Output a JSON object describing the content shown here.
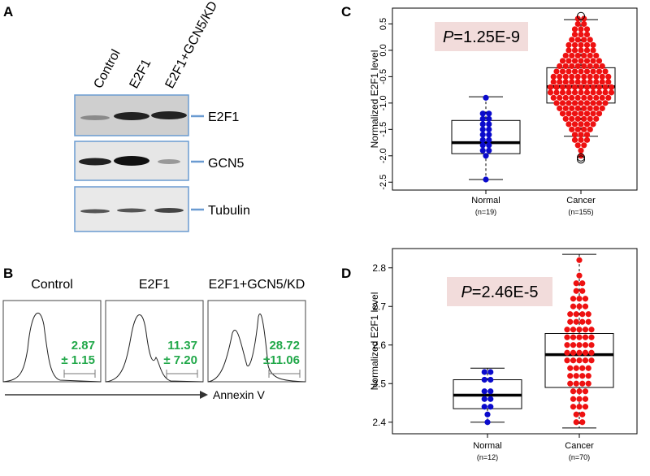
{
  "panel_a": {
    "label": "A",
    "lanes": [
      "Control",
      "E2F1",
      "E2F1+GCN5/KD"
    ],
    "bands": [
      "E2F1",
      "GCN5",
      "Tubulin"
    ]
  },
  "panel_b": {
    "label": "B",
    "samples": [
      {
        "name": "Control",
        "value": "2.87",
        "error": "± 1.15"
      },
      {
        "name": "E2F1",
        "value": "11.37",
        "error": "± 7.20"
      },
      {
        "name": "E2F1+GCN5/KD",
        "value": "28.72",
        "error": "±11.06"
      }
    ],
    "x_label": "Annexin V"
  },
  "chart_data": [
    {
      "type": "box",
      "panel": "C",
      "y_label": "Normalized E2F1 level",
      "annotation": {
        "variable": "P",
        "text": "=1.25E-9"
      },
      "categories": [
        "Normal",
        "Cancer"
      ],
      "category_notes": [
        "(n=19)",
        "(n=155)"
      ],
      "colors": [
        "#0a0acc",
        "#ee1111"
      ],
      "boxes": [
        {
          "whislo": -2.45,
          "q1": -1.96,
          "median": -1.75,
          "q3": -1.33,
          "whishi": -0.88
        },
        {
          "whislo": -1.63,
          "q1": -1.0,
          "median": -0.69,
          "q3": -0.33,
          "whishi": 0.58
        }
      ],
      "outliers": [
        [],
        [
          0.65,
          -2.03,
          -2.07
        ]
      ],
      "dot_rows": [
        [
          {
            "value": -0.9,
            "count": 1
          },
          {
            "value": -1.2,
            "count": 2
          },
          {
            "value": -1.3,
            "count": 2
          },
          {
            "value": -1.4,
            "count": 2
          },
          {
            "value": -1.5,
            "count": 2
          },
          {
            "value": -1.6,
            "count": 2
          },
          {
            "value": -1.7,
            "count": 2
          },
          {
            "value": -1.8,
            "count": 2
          },
          {
            "value": -1.9,
            "count": 2
          },
          {
            "value": -2.0,
            "count": 1
          },
          {
            "value": -2.45,
            "count": 1
          }
        ],
        [
          {
            "value": 0.6,
            "count": 2
          },
          {
            "value": 0.5,
            "count": 2
          },
          {
            "value": 0.4,
            "count": 3
          },
          {
            "value": 0.3,
            "count": 3
          },
          {
            "value": 0.2,
            "count": 4
          },
          {
            "value": 0.1,
            "count": 5
          },
          {
            "value": 0.0,
            "count": 5
          },
          {
            "value": -0.1,
            "count": 6
          },
          {
            "value": -0.2,
            "count": 7
          },
          {
            "value": -0.3,
            "count": 8
          },
          {
            "value": -0.4,
            "count": 9
          },
          {
            "value": -0.5,
            "count": 10
          },
          {
            "value": -0.6,
            "count": 10
          },
          {
            "value": -0.7,
            "count": 11
          },
          {
            "value": -0.8,
            "count": 11
          },
          {
            "value": -0.9,
            "count": 10
          },
          {
            "value": -1.0,
            "count": 9
          },
          {
            "value": -1.1,
            "count": 8
          },
          {
            "value": -1.2,
            "count": 7
          },
          {
            "value": -1.3,
            "count": 6
          },
          {
            "value": -1.4,
            "count": 5
          },
          {
            "value": -1.5,
            "count": 4
          },
          {
            "value": -1.6,
            "count": 3
          },
          {
            "value": -1.7,
            "count": 3
          },
          {
            "value": -1.8,
            "count": 2
          },
          {
            "value": -1.9,
            "count": 1
          },
          {
            "value": -2.0,
            "count": 1
          }
        ]
      ],
      "ylim": [
        -2.65,
        0.8
      ],
      "yticks": [
        {
          "value": -2.5,
          "label": "-2.5"
        },
        {
          "value": -2,
          "label": "-2.0"
        },
        {
          "value": -1.5,
          "label": "-1.5"
        },
        {
          "value": -1,
          "label": "-1.0"
        },
        {
          "value": -0.5,
          "label": "-0.5"
        },
        {
          "value": 0,
          "label": "0.0"
        },
        {
          "value": 0.5,
          "label": "0.5"
        }
      ]
    },
    {
      "type": "box",
      "panel": "D",
      "y_label": "Normalized E2F1 level",
      "annotation": {
        "variable": "P",
        "text": "=2.46E-5"
      },
      "categories": [
        "Normal",
        "Cancer"
      ],
      "category_notes": [
        "(n=12)",
        "(n=70)"
      ],
      "colors": [
        "#0a0acc",
        "#ee1111"
      ],
      "boxes": [
        {
          "whislo": 2.4,
          "q1": 2.435,
          "median": 2.47,
          "q3": 2.51,
          "whishi": 2.54
        },
        {
          "whislo": 2.385,
          "q1": 2.49,
          "median": 2.575,
          "q3": 2.63,
          "whishi": 2.835
        }
      ],
      "outliers": [
        [],
        []
      ],
      "dot_rows": [
        [
          {
            "value": 2.53,
            "count": 2
          },
          {
            "value": 2.51,
            "count": 2
          },
          {
            "value": 2.48,
            "count": 2
          },
          {
            "value": 2.46,
            "count": 2
          },
          {
            "value": 2.44,
            "count": 2
          },
          {
            "value": 2.42,
            "count": 1
          },
          {
            "value": 2.4,
            "count": 1
          }
        ],
        [
          {
            "value": 2.82,
            "count": 1
          },
          {
            "value": 2.78,
            "count": 1
          },
          {
            "value": 2.76,
            "count": 2
          },
          {
            "value": 2.74,
            "count": 2
          },
          {
            "value": 2.72,
            "count": 3
          },
          {
            "value": 2.7,
            "count": 3
          },
          {
            "value": 2.68,
            "count": 4
          },
          {
            "value": 2.66,
            "count": 4
          },
          {
            "value": 2.64,
            "count": 5
          },
          {
            "value": 2.62,
            "count": 5
          },
          {
            "value": 2.6,
            "count": 5
          },
          {
            "value": 2.58,
            "count": 5
          },
          {
            "value": 2.56,
            "count": 5
          },
          {
            "value": 2.54,
            "count": 4
          },
          {
            "value": 2.52,
            "count": 4
          },
          {
            "value": 2.5,
            "count": 4
          },
          {
            "value": 2.48,
            "count": 3
          },
          {
            "value": 2.46,
            "count": 3
          },
          {
            "value": 2.44,
            "count": 3
          },
          {
            "value": 2.42,
            "count": 2
          },
          {
            "value": 2.4,
            "count": 2
          }
        ]
      ],
      "ylim": [
        2.37,
        2.85
      ],
      "yticks": [
        2.4,
        2.5,
        2.6,
        2.7,
        2.8
      ]
    }
  ]
}
